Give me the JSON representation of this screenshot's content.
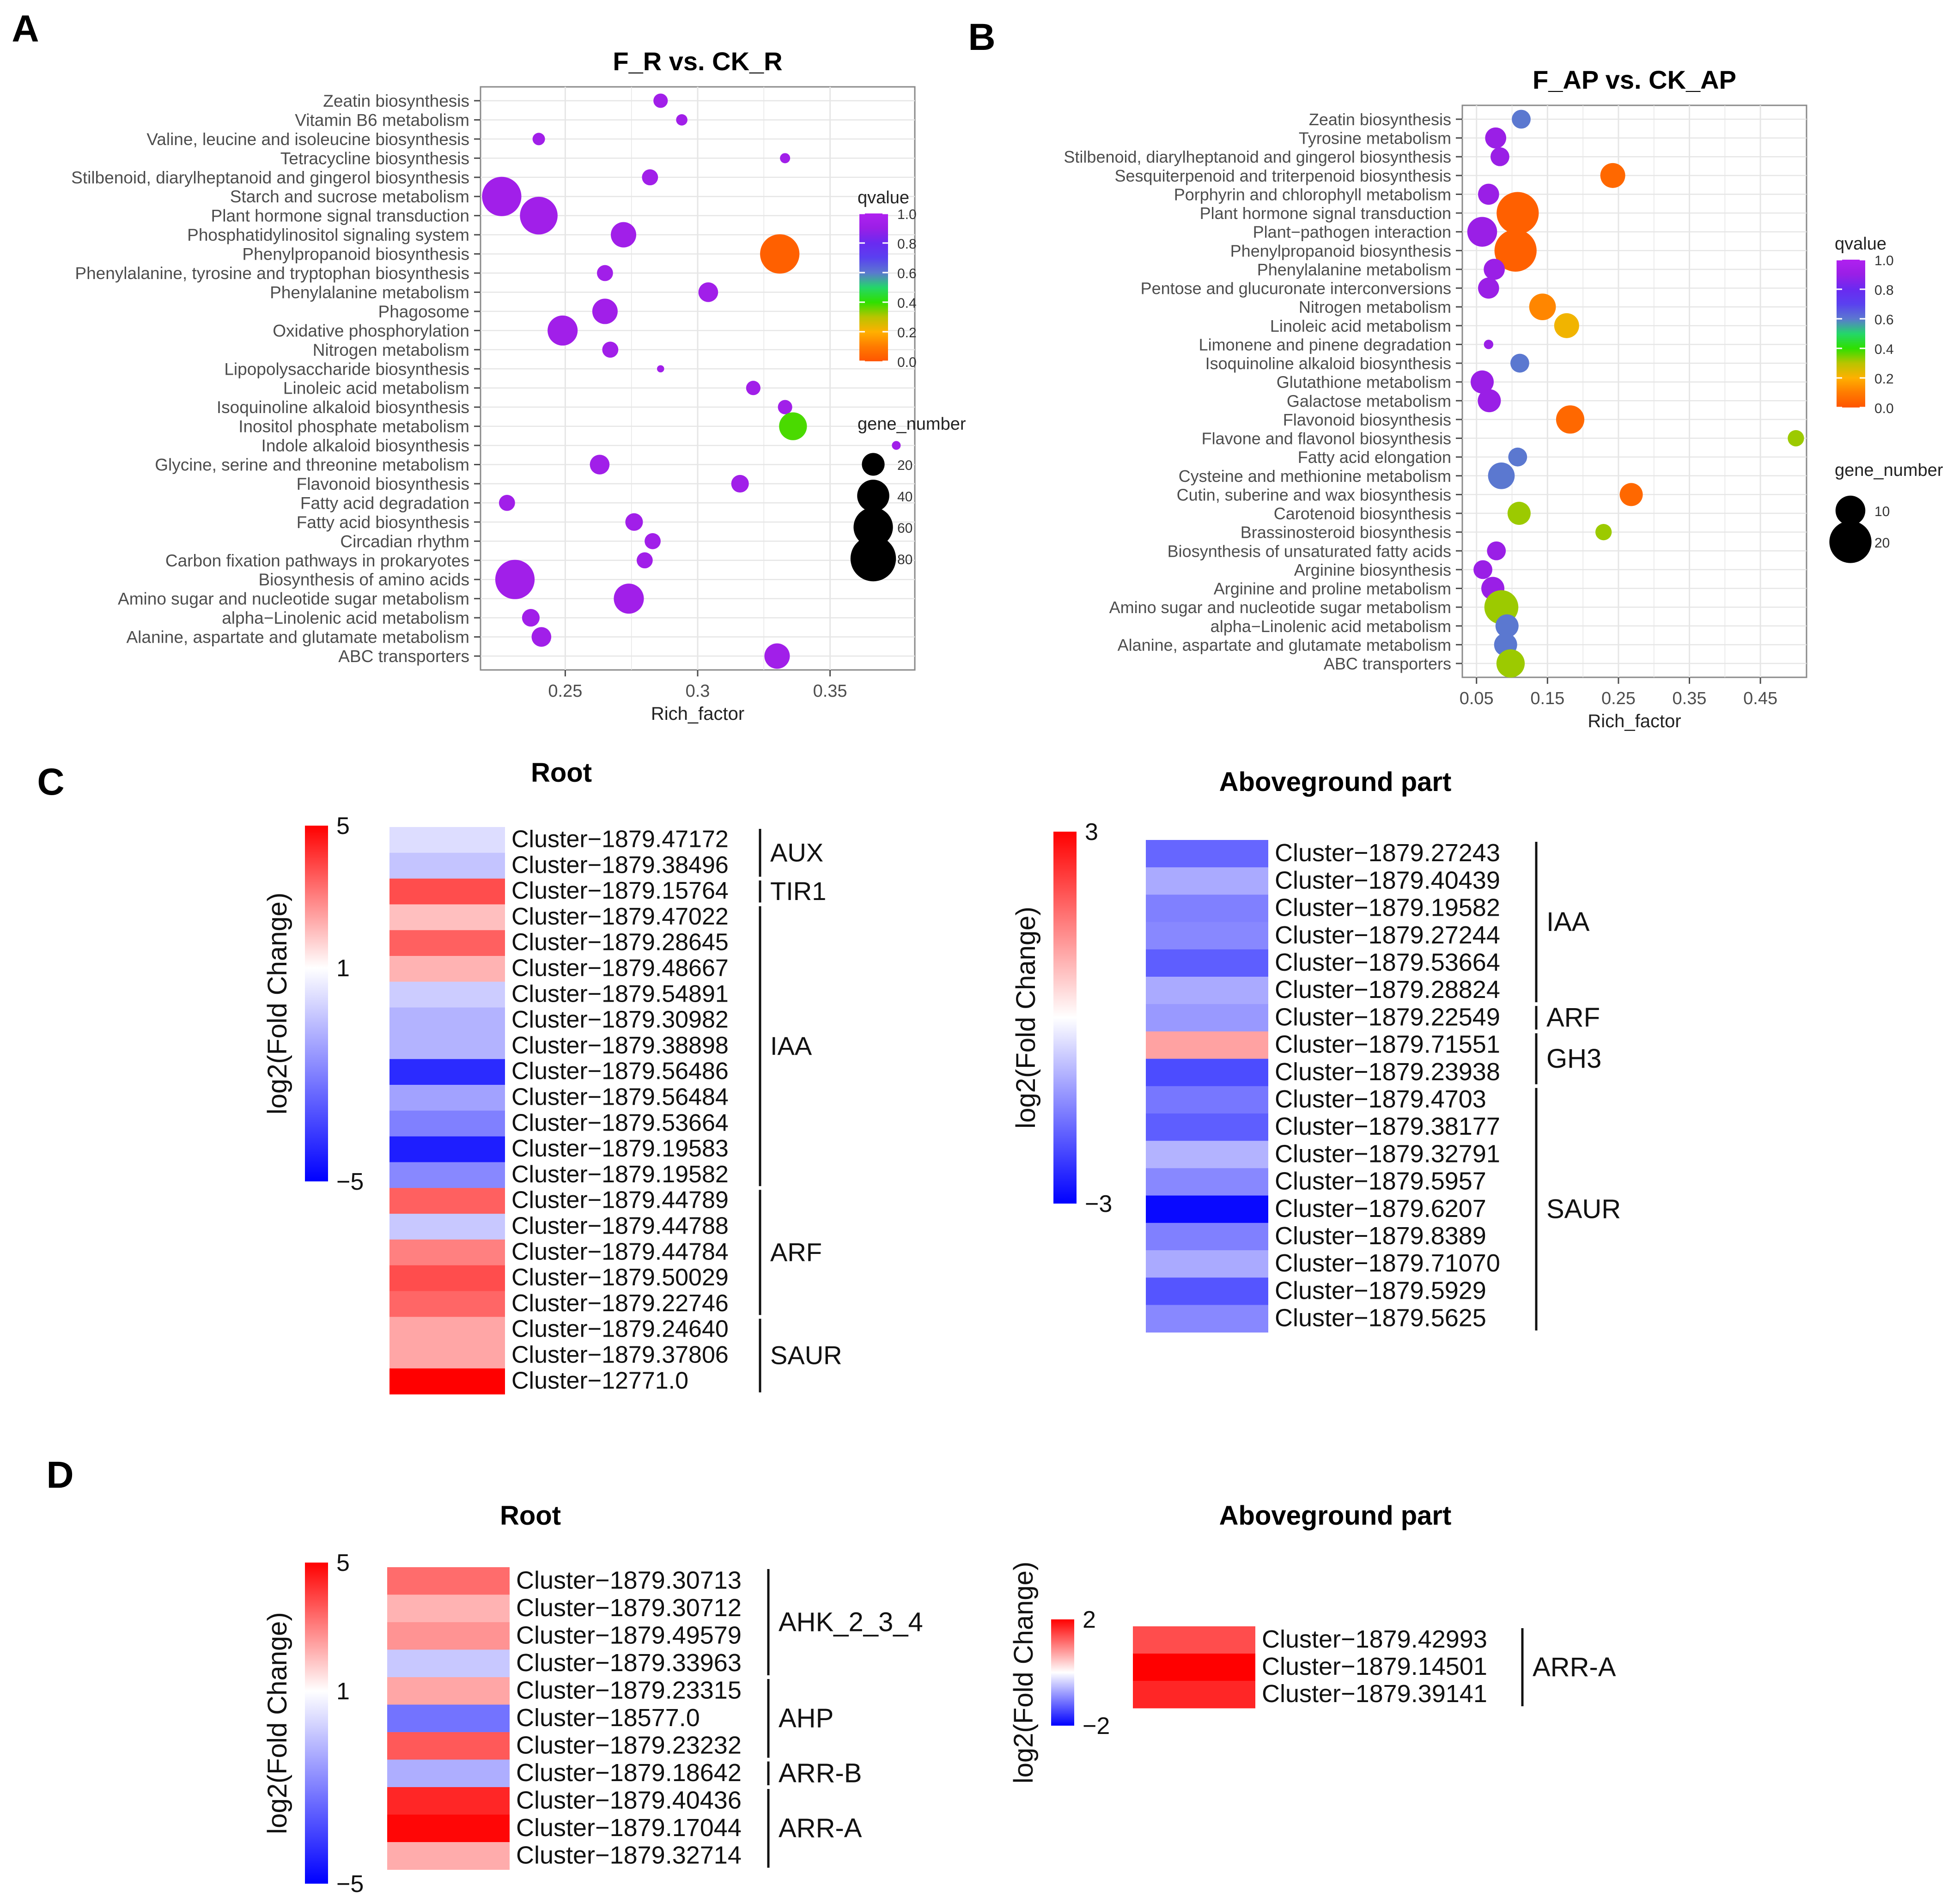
{
  "colors": {
    "qvalue_scale": [
      "#ff5500",
      "#ff7b00",
      "#ffb000",
      "#b8c400",
      "#2ee000",
      "#24d66a",
      "#5b78d0",
      "#5a40f0",
      "#6a2af0",
      "#9a1fe6",
      "#b020f0"
    ],
    "fc_high": "#ff0000",
    "fc_mid": "#ffffff",
    "fc_low": "#0000ff",
    "panel_bg": "#ffffff",
    "grid": "#e6e6e6",
    "axis": "#4d4d4d"
  },
  "chart_data": [
    {
      "panel": "A",
      "type": "scatter",
      "title": "F_R vs. CK_R",
      "xlabel": "Rich_factor",
      "ylabel": "",
      "xlim": [
        0.218,
        0.382
      ],
      "xticks": [
        0.25,
        0.3,
        0.35
      ],
      "xtick_labels": [
        "0.25",
        "0.3",
        "0.35"
      ],
      "grid": true,
      "legend_color_title": "qvalue",
      "legend_color_ticks": [
        "1.0",
        "0.8",
        "0.6",
        "0.4",
        "0.2",
        "0.0"
      ],
      "legend_size_title": "gene_number",
      "legend_size_values": [
        20,
        40,
        60,
        80
      ],
      "legend_size_labels": [
        "20",
        "40",
        "60",
        "80"
      ],
      "points": [
        {
          "term": "Zeatin biosynthesis",
          "x": 0.286,
          "genes": 8,
          "q": 0.93
        },
        {
          "term": "Vitamin B6 metabolism",
          "x": 0.294,
          "genes": 5,
          "q": 0.93
        },
        {
          "term": "Valine, leucine and isoleucine biosynthesis",
          "x": 0.24,
          "genes": 6,
          "q": 0.93
        },
        {
          "term": "Tetracycline biosynthesis",
          "x": 0.333,
          "genes": 4,
          "q": 0.93
        },
        {
          "term": "Stilbenoid, diarylheptanoid and gingerol biosynthesis",
          "x": 0.282,
          "genes": 10,
          "q": 0.93
        },
        {
          "term": "Starch and sucrose metabolism",
          "x": 0.226,
          "genes": 60,
          "q": 0.93
        },
        {
          "term": "Plant hormone signal transduction",
          "x": 0.24,
          "genes": 55,
          "q": 0.93
        },
        {
          "term": "Phosphatidylinositol signaling system",
          "x": 0.272,
          "genes": 25,
          "q": 0.93
        },
        {
          "term": "Phenylpropanoid biosynthesis",
          "x": 0.331,
          "genes": 60,
          "q": 0.03
        },
        {
          "term": "Phenylalanine, tyrosine and tryptophan biosynthesis",
          "x": 0.265,
          "genes": 10,
          "q": 0.93
        },
        {
          "term": "Phenylalanine metabolism",
          "x": 0.304,
          "genes": 15,
          "q": 0.93
        },
        {
          "term": "Phagosome",
          "x": 0.265,
          "genes": 25,
          "q": 0.93
        },
        {
          "term": "Oxidative phosphorylation",
          "x": 0.249,
          "genes": 35,
          "q": 0.93
        },
        {
          "term": "Nitrogen metabolism",
          "x": 0.267,
          "genes": 10,
          "q": 0.93
        },
        {
          "term": "Lipopolysaccharide biosynthesis",
          "x": 0.286,
          "genes": 2,
          "q": 0.93
        },
        {
          "term": "Linoleic acid metabolism",
          "x": 0.321,
          "genes": 8,
          "q": 0.93
        },
        {
          "term": "Isoquinoline alkaloid biosynthesis",
          "x": 0.333,
          "genes": 8,
          "q": 0.93
        },
        {
          "term": "Inositol phosphate metabolism",
          "x": 0.336,
          "genes": 30,
          "q": 0.38
        },
        {
          "term": "Indole alkaloid biosynthesis",
          "x": 0.375,
          "genes": 3,
          "q": 0.93
        },
        {
          "term": "Glycine, serine and threonine metabolism",
          "x": 0.263,
          "genes": 15,
          "q": 0.93
        },
        {
          "term": "Flavonoid biosynthesis",
          "x": 0.316,
          "genes": 12,
          "q": 0.93
        },
        {
          "term": "Fatty acid degradation",
          "x": 0.228,
          "genes": 10,
          "q": 0.93
        },
        {
          "term": "Fatty acid biosynthesis",
          "x": 0.276,
          "genes": 12,
          "q": 0.93
        },
        {
          "term": "Circadian rhythm",
          "x": 0.283,
          "genes": 10,
          "q": 0.93
        },
        {
          "term": "Carbon fixation pathways in prokaryotes",
          "x": 0.28,
          "genes": 10,
          "q": 0.93
        },
        {
          "term": "Biosynthesis of amino acids",
          "x": 0.231,
          "genes": 60,
          "q": 0.93
        },
        {
          "term": "Amino sugar and nucleotide sugar metabolism",
          "x": 0.274,
          "genes": 35,
          "q": 0.93
        },
        {
          "term": "alpha−Linolenic acid metabolism",
          "x": 0.237,
          "genes": 12,
          "q": 0.93
        },
        {
          "term": "Alanine, aspartate and glutamate metabolism",
          "x": 0.241,
          "genes": 15,
          "q": 0.93
        },
        {
          "term": "ABC transporters",
          "x": 0.33,
          "genes": 25,
          "q": 0.93
        }
      ]
    },
    {
      "panel": "B",
      "type": "scatter",
      "title": "F_AP vs. CK_AP",
      "xlabel": "Rich_factor",
      "ylabel": "",
      "xlim": [
        0.03,
        0.515
      ],
      "xticks": [
        0.05,
        0.15,
        0.25,
        0.35,
        0.45
      ],
      "xtick_labels": [
        "0.05",
        "0.15",
        "0.25",
        "0.35",
        "0.45"
      ],
      "grid": true,
      "legend_color_title": "qvalue",
      "legend_color_ticks": [
        "1.0",
        "0.8",
        "0.6",
        "0.4",
        "0.2",
        "0.0"
      ],
      "legend_size_title": "gene_number",
      "legend_size_values": [
        10,
        20
      ],
      "legend_size_labels": [
        "10",
        "20"
      ],
      "points": [
        {
          "term": "Zeatin biosynthesis",
          "x": 0.113,
          "genes": 4,
          "q": 0.6
        },
        {
          "term": "Tyrosine metabolism",
          "x": 0.077,
          "genes": 5,
          "q": 0.9
        },
        {
          "term": "Stilbenoid, diarylheptanoid and gingerol biosynthesis",
          "x": 0.083,
          "genes": 4,
          "q": 0.9
        },
        {
          "term": "Sesquiterpenoid and triterpenoid biosynthesis",
          "x": 0.242,
          "genes": 7,
          "q": 0.05
        },
        {
          "term": "Porphyrin and chlorophyll metabolism",
          "x": 0.067,
          "genes": 5,
          "q": 0.9
        },
        {
          "term": "Plant hormone signal transduction",
          "x": 0.108,
          "genes": 20,
          "q": 0.03
        },
        {
          "term": "Plant−pathogen interaction",
          "x": 0.058,
          "genes": 10,
          "q": 0.9
        },
        {
          "term": "Phenylpropanoid biosynthesis",
          "x": 0.105,
          "genes": 20,
          "q": 0.03
        },
        {
          "term": "Phenylalanine metabolism",
          "x": 0.075,
          "genes": 5,
          "q": 0.9
        },
        {
          "term": "Pentose and glucuronate interconversions",
          "x": 0.067,
          "genes": 5,
          "q": 0.9
        },
        {
          "term": "Nitrogen metabolism",
          "x": 0.143,
          "genes": 8,
          "q": 0.12
        },
        {
          "term": "Linoleic acid metabolism",
          "x": 0.177,
          "genes": 7,
          "q": 0.22
        },
        {
          "term": "Limonene and pinene degradation",
          "x": 0.067,
          "genes": 1,
          "q": 0.9
        },
        {
          "term": "Isoquinoline alkaloid biosynthesis",
          "x": 0.111,
          "genes": 4,
          "q": 0.6
        },
        {
          "term": "Glutathione metabolism",
          "x": 0.058,
          "genes": 6,
          "q": 0.9
        },
        {
          "term": "Galactose metabolism",
          "x": 0.068,
          "genes": 6,
          "q": 0.9
        },
        {
          "term": "Flavonoid biosynthesis",
          "x": 0.182,
          "genes": 9,
          "q": 0.05
        },
        {
          "term": "Flavone and flavonol biosynthesis",
          "x": 0.5,
          "genes": 3,
          "q": 0.32
        },
        {
          "term": "Fatty acid elongation",
          "x": 0.108,
          "genes": 4,
          "q": 0.6
        },
        {
          "term": "Cysteine and methionine metabolism",
          "x": 0.085,
          "genes": 8,
          "q": 0.6
        },
        {
          "term": "Cutin, suberine and wax biosynthesis",
          "x": 0.268,
          "genes": 6,
          "q": 0.05
        },
        {
          "term": "Carotenoid biosynthesis",
          "x": 0.11,
          "genes": 6,
          "q": 0.32
        },
        {
          "term": "Brassinosteroid biosynthesis",
          "x": 0.229,
          "genes": 3,
          "q": 0.32
        },
        {
          "term": "Biosynthesis of unsaturated fatty acids",
          "x": 0.078,
          "genes": 4,
          "q": 0.9
        },
        {
          "term": "Arginine biosynthesis",
          "x": 0.059,
          "genes": 4,
          "q": 0.9
        },
        {
          "term": "Arginine and proline metabolism",
          "x": 0.073,
          "genes": 6,
          "q": 0.9
        },
        {
          "term": "Amino sugar and nucleotide sugar metabolism",
          "x": 0.085,
          "genes": 13,
          "q": 0.32
        },
        {
          "term": "alpha−Linolenic acid metabolism",
          "x": 0.093,
          "genes": 6,
          "q": 0.6
        },
        {
          "term": "Alanine, aspartate and glutamate metabolism",
          "x": 0.091,
          "genes": 6,
          "q": 0.6
        },
        {
          "term": "ABC transporters",
          "x": 0.098,
          "genes": 9,
          "q": 0.32
        }
      ]
    },
    {
      "panel": "C",
      "type": "heatmap",
      "title": "Root",
      "colorbar_label": "log2(Fold Change)",
      "range": [
        -5,
        5
      ],
      "mid": 1,
      "tick_labels": [
        "5",
        "1",
        "−5"
      ],
      "rows": [
        {
          "id": "Cluster−1879.47172",
          "value": 0.2
        },
        {
          "id": "Cluster−1879.38496",
          "value": -0.4
        },
        {
          "id": "Cluster−1879.15764",
          "value": 3.8
        },
        {
          "id": "Cluster−1879.47022",
          "value": 2.0
        },
        {
          "id": "Cluster−1879.28645",
          "value": 3.5
        },
        {
          "id": "Cluster−1879.48667",
          "value": 2.2
        },
        {
          "id": "Cluster−1879.54891",
          "value": -0.2
        },
        {
          "id": "Cluster−1879.30982",
          "value": -0.8
        },
        {
          "id": "Cluster−1879.38898",
          "value": -0.8
        },
        {
          "id": "Cluster−1879.56486",
          "value": -4.0
        },
        {
          "id": "Cluster−1879.56484",
          "value": -1.2
        },
        {
          "id": "Cluster−1879.53664",
          "value": -2.0
        },
        {
          "id": "Cluster−1879.19583",
          "value": -4.3
        },
        {
          "id": "Cluster−1879.19582",
          "value": -1.8
        },
        {
          "id": "Cluster−1879.44789",
          "value": 3.5
        },
        {
          "id": "Cluster−1879.44788",
          "value": -0.3
        },
        {
          "id": "Cluster−1879.44784",
          "value": 3.0
        },
        {
          "id": "Cluster−1879.50029",
          "value": 3.8
        },
        {
          "id": "Cluster−1879.22746",
          "value": 3.4
        },
        {
          "id": "Cluster−1879.24640",
          "value": 2.4
        },
        {
          "id": "Cluster−1879.37806",
          "value": 2.4
        },
        {
          "id": "Cluster−12771.0",
          "value": 5.0
        }
      ],
      "groups": [
        {
          "label": "AUX",
          "start": 0,
          "end": 1
        },
        {
          "label": "TIR1",
          "start": 2,
          "end": 2
        },
        {
          "label": "IAA",
          "start": 3,
          "end": 13
        },
        {
          "label": "ARF",
          "start": 14,
          "end": 18
        },
        {
          "label": "SAUR",
          "start": 19,
          "end": 21
        }
      ]
    },
    {
      "panel": "C",
      "type": "heatmap",
      "title": "Aboveground part",
      "colorbar_label": "log2(Fold Change)",
      "range": [
        -3,
        3
      ],
      "mid": 0,
      "tick_labels": [
        "3",
        "−3"
      ],
      "rows": [
        {
          "id": "Cluster−1879.27243",
          "value": -1.8
        },
        {
          "id": "Cluster−1879.40439",
          "value": -1.0
        },
        {
          "id": "Cluster−1879.19582",
          "value": -1.5
        },
        {
          "id": "Cluster−1879.27244",
          "value": -1.4
        },
        {
          "id": "Cluster−1879.53664",
          "value": -1.9
        },
        {
          "id": "Cluster−1879.28824",
          "value": -1.0
        },
        {
          "id": "Cluster−1879.22549",
          "value": -1.2
        },
        {
          "id": "Cluster−1879.71551",
          "value": 1.1
        },
        {
          "id": "Cluster−1879.23938",
          "value": -2.1
        },
        {
          "id": "Cluster−1879.4703",
          "value": -1.6
        },
        {
          "id": "Cluster−1879.38177",
          "value": -1.9
        },
        {
          "id": "Cluster−1879.32791",
          "value": -0.9
        },
        {
          "id": "Cluster−1879.5957",
          "value": -1.4
        },
        {
          "id": "Cluster−1879.6207",
          "value": -2.9
        },
        {
          "id": "Cluster−1879.8389",
          "value": -1.5
        },
        {
          "id": "Cluster−1879.71070",
          "value": -1.0
        },
        {
          "id": "Cluster−1879.5929",
          "value": -2.0
        },
        {
          "id": "Cluster−1879.5625",
          "value": -1.4
        }
      ],
      "groups": [
        {
          "label": "IAA",
          "start": 0,
          "end": 5
        },
        {
          "label": "ARF",
          "start": 6,
          "end": 6
        },
        {
          "label": "GH3",
          "start": 7,
          "end": 8
        },
        {
          "label": "SAUR",
          "start": 9,
          "end": 17
        }
      ]
    },
    {
      "panel": "D",
      "type": "heatmap",
      "title": "Root",
      "colorbar_label": "log2(Fold Change)",
      "range": [
        -5,
        5
      ],
      "mid": 1,
      "tick_labels": [
        "5",
        "1",
        "−5"
      ],
      "rows": [
        {
          "id": "Cluster−1879.30713",
          "value": 3.3
        },
        {
          "id": "Cluster−1879.30712",
          "value": 2.2
        },
        {
          "id": "Cluster−1879.49579",
          "value": 2.7
        },
        {
          "id": "Cluster−1879.33963",
          "value": -0.3
        },
        {
          "id": "Cluster−1879.23315",
          "value": 2.4
        },
        {
          "id": "Cluster−18577.0",
          "value": -2.3
        },
        {
          "id": "Cluster−1879.23232",
          "value": 3.6
        },
        {
          "id": "Cluster−1879.18642",
          "value": -0.9
        },
        {
          "id": "Cluster−1879.40436",
          "value": 4.4
        },
        {
          "id": "Cluster−1879.17044",
          "value": 4.9
        },
        {
          "id": "Cluster−1879.32714",
          "value": 2.3
        }
      ],
      "groups": [
        {
          "label": "AHK_2_3_4",
          "start": 0,
          "end": 3
        },
        {
          "label": "AHP",
          "start": 4,
          "end": 6
        },
        {
          "label": "ARR-B",
          "start": 7,
          "end": 7
        },
        {
          "label": "ARR-A",
          "start": 8,
          "end": 10
        }
      ]
    },
    {
      "panel": "D",
      "type": "heatmap",
      "title": "Aboveground part",
      "colorbar_label": "log2(Fold Change)",
      "range": [
        -2,
        2
      ],
      "mid": 0,
      "tick_labels": [
        "2",
        "−2"
      ],
      "rows": [
        {
          "id": "Cluster−1879.42993",
          "value": 1.4
        },
        {
          "id": "Cluster−1879.14501",
          "value": 2.0
        },
        {
          "id": "Cluster−1879.39141",
          "value": 1.7
        }
      ],
      "groups": [
        {
          "label": "ARR-A",
          "start": 0,
          "end": 2
        }
      ]
    }
  ]
}
